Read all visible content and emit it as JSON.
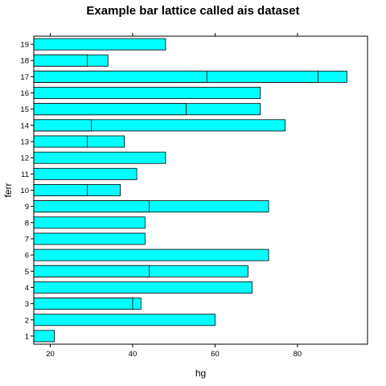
{
  "chart_data": {
    "type": "bar",
    "orientation": "horizontal",
    "title": "Example bar lattice called ais dataset",
    "xlabel": "hg",
    "ylabel": "ferr",
    "xlim": [
      16,
      97
    ],
    "xticks": [
      20,
      40,
      60,
      80
    ],
    "categories": [
      "1",
      "2",
      "3",
      "4",
      "5",
      "6",
      "7",
      "8",
      "9",
      "10",
      "11",
      "12",
      "13",
      "14",
      "15",
      "16",
      "17",
      "18",
      "19"
    ],
    "bars": [
      {
        "category": "1",
        "values": [
          21
        ]
      },
      {
        "category": "2",
        "values": [
          60
        ]
      },
      {
        "category": "3",
        "values": [
          42,
          40
        ]
      },
      {
        "category": "4",
        "values": [
          69
        ]
      },
      {
        "category": "5",
        "values": [
          68,
          44
        ]
      },
      {
        "category": "6",
        "values": [
          73
        ]
      },
      {
        "category": "7",
        "values": [
          43
        ]
      },
      {
        "category": "8",
        "values": [
          43
        ]
      },
      {
        "category": "9",
        "values": [
          73,
          44
        ]
      },
      {
        "category": "10",
        "values": [
          37,
          29
        ]
      },
      {
        "category": "11",
        "values": [
          41
        ]
      },
      {
        "category": "12",
        "values": [
          48
        ]
      },
      {
        "category": "13",
        "values": [
          38,
          29
        ]
      },
      {
        "category": "14",
        "values": [
          77,
          30
        ]
      },
      {
        "category": "15",
        "values": [
          71,
          53
        ]
      },
      {
        "category": "16",
        "values": [
          71
        ]
      },
      {
        "category": "17",
        "values": [
          92,
          85,
          58
        ]
      },
      {
        "category": "18",
        "values": [
          34,
          29
        ]
      },
      {
        "category": "19",
        "values": [
          48
        ]
      }
    ],
    "bar_fill": "#00ffff",
    "bar_stroke": "#000000",
    "grid": false,
    "ticks_top_and_bottom": true
  }
}
